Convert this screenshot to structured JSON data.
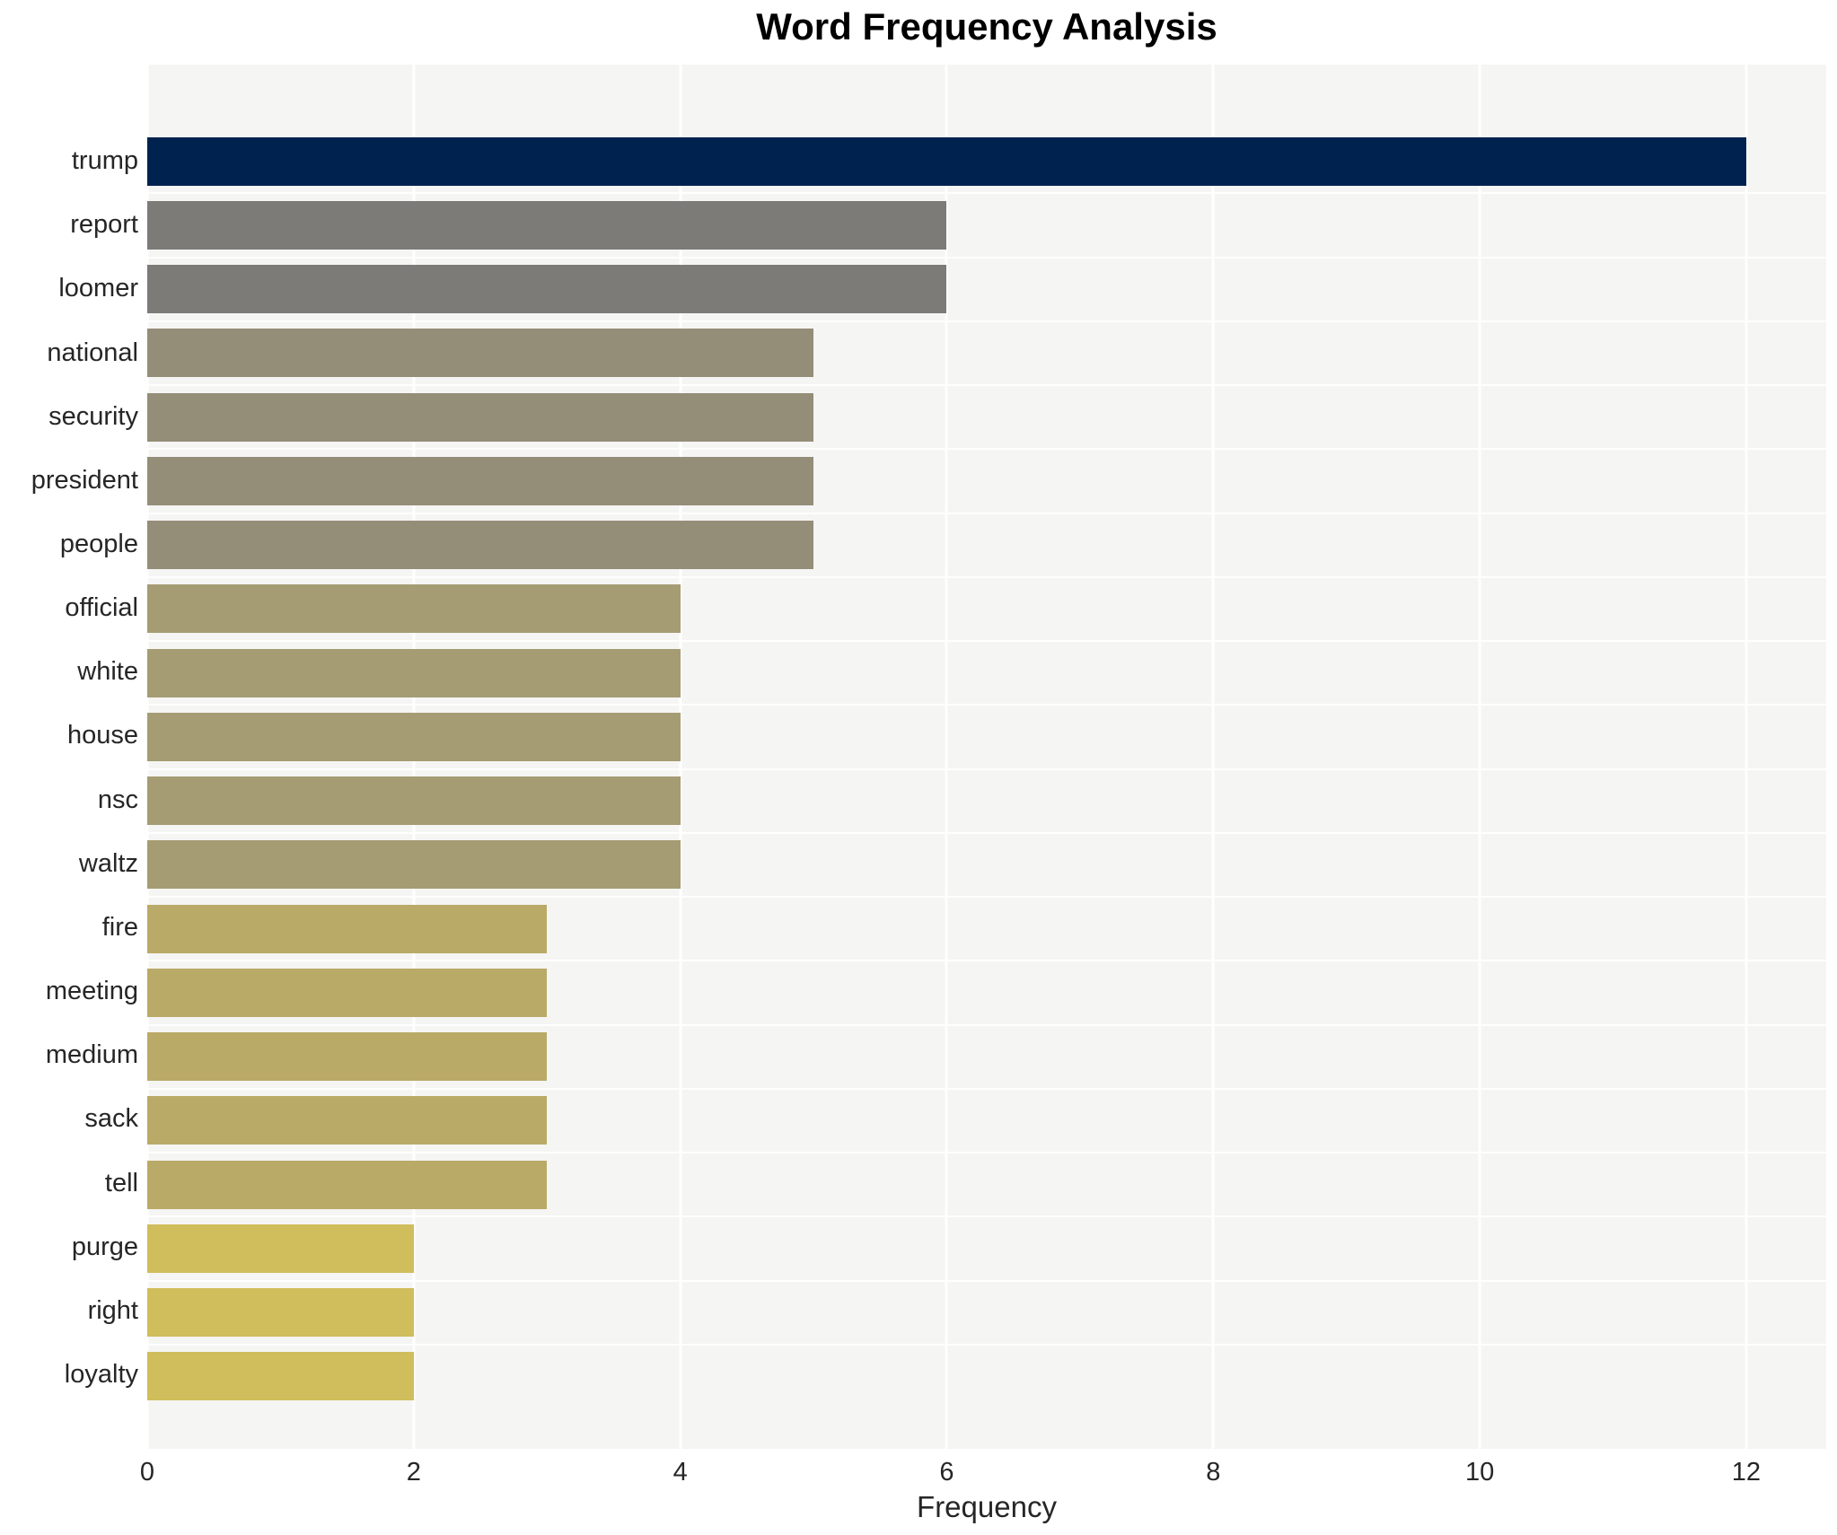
{
  "chart_data": {
    "type": "bar",
    "orientation": "horizontal",
    "title": "Word Frequency Analysis",
    "xlabel": "Frequency",
    "ylabel": "",
    "categories": [
      "trump",
      "report",
      "loomer",
      "national",
      "security",
      "president",
      "people",
      "official",
      "white",
      "house",
      "nsc",
      "waltz",
      "fire",
      "meeting",
      "medium",
      "sack",
      "tell",
      "purge",
      "right",
      "loyalty"
    ],
    "values": [
      12,
      6,
      6,
      5,
      5,
      5,
      5,
      4,
      4,
      4,
      4,
      4,
      3,
      3,
      3,
      3,
      3,
      2,
      2,
      2
    ],
    "bar_colors": [
      "#00224e",
      "#7d7b77",
      "#7d7b77",
      "#948d78",
      "#948d78",
      "#948d78",
      "#948d78",
      "#a59c73",
      "#a59c73",
      "#a59c73",
      "#a59c73",
      "#a59c73",
      "#b9aa67",
      "#b9aa67",
      "#b9aa67",
      "#b9aa67",
      "#b9aa67",
      "#d0bd5b",
      "#d0bd5b",
      "#d0bd5b"
    ],
    "xticks": [
      0,
      2,
      4,
      6,
      8,
      10,
      12
    ],
    "xlim": [
      0,
      12.6
    ],
    "grid": true,
    "legend": false,
    "colors": {
      "plot_background": "#f5f5f4",
      "gridline": "#ffffff",
      "page_background": "#ffffff",
      "tick_text": "#262626",
      "title_text": "#000000"
    }
  }
}
